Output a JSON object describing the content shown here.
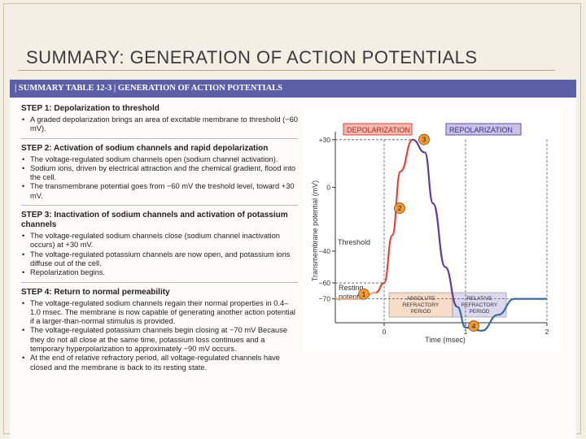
{
  "slide": {
    "title": "SUMMARY: GENERATION OF ACTION POTENTIALS"
  },
  "table": {
    "header": "|  SUMMARY TABLE 12-3  |  GENERATION OF ACTION POTENTIALS",
    "steps": [
      {
        "title": "STEP 1: Depolarization to threshold",
        "bullets": [
          "A graded depolarization brings an area of excitable membrane to threshold (−60 mV)."
        ]
      },
      {
        "title": "STEP 2: Activation of sodium channels and rapid depolarization",
        "bullets": [
          "The voltage-regulated sodium channels open (sodium channel activation).",
          "Sodium ions, driven by electrical attraction and the chemical gradient, flood into the cell.",
          "The transmembrane potential goes from −60 mV the treshold level, toward +30 mV."
        ]
      },
      {
        "title": "STEP 3: Inactivation of sodium channels and activation of potassium channels",
        "bullets": [
          "The voltage-regulated sodium channels close (sodium channel inactivation occurs) at +30 mV.",
          "The voltage-regulated potassium channels are now open, and potassium ions diffuse out of the cell.",
          "Repolarization begins."
        ]
      },
      {
        "title": "STEP 4: Return to normal permeability",
        "bullets": [
          "The voltage-regulated sodium channels regain their normal properties in 0.4–1.0 msec. The membrane is now capable of generating another action potential if a larger-than-normal stimulus is provided.",
          "The voltage-regulated potassium channels begin closing at −70 mV Because they do not all close at the same time, potassium loss continues and a temporary hyperpolarization to approximately −90 mV occurs.",
          "At the end of relative refractory period, all voltage-regulated channels have closed and the membrane is back to its resting state."
        ]
      }
    ]
  },
  "figure": {
    "depolarization_label": "DEPOLARIZATION",
    "repolarization_label": "REPOLARIZATION",
    "ylabel": "Transmembrane potential (mV)",
    "xlabel": "Time (msec)",
    "yticks": [
      "+30",
      "0",
      "−40",
      "−60",
      "−70"
    ],
    "xticks": [
      "0",
      "1",
      "2"
    ],
    "threshold_label": "Threshold",
    "resting_label_1": "Resting",
    "resting_label_2": "potential",
    "absolute_label": [
      "ABSOLUTE",
      "REFRACTORY",
      "PERIOD"
    ],
    "relative_label": [
      "RELATIVE",
      "REFRACTORY",
      "PERIOD"
    ],
    "markers": [
      "1",
      "2",
      "3",
      "4"
    ],
    "colors": {
      "depol_fill": "#f4b9b0",
      "repol_fill": "#c9c2e6",
      "abs_fill": "#f7dcc8",
      "rel_fill": "#dcd8ef",
      "marker_fill": "#f29a35",
      "header_bg": "#5a5fa6"
    }
  },
  "chart_data": {
    "type": "line",
    "xlabel": "Time (msec)",
    "ylabel": "Transmembrane potential (mV)",
    "x": [
      -0.6,
      -0.3,
      -0.1,
      0.0,
      0.1,
      0.2,
      0.35,
      0.5,
      0.6,
      0.75,
      0.9,
      1.0,
      1.2,
      1.4,
      1.6,
      2.0
    ],
    "y": [
      -70,
      -70,
      -66,
      -60,
      -30,
      10,
      30,
      22,
      -10,
      -50,
      -75,
      -88,
      -90,
      -80,
      -70,
      -70
    ],
    "xlim": [
      -0.6,
      2.0
    ],
    "ylim": [
      -85,
      35
    ]
  }
}
